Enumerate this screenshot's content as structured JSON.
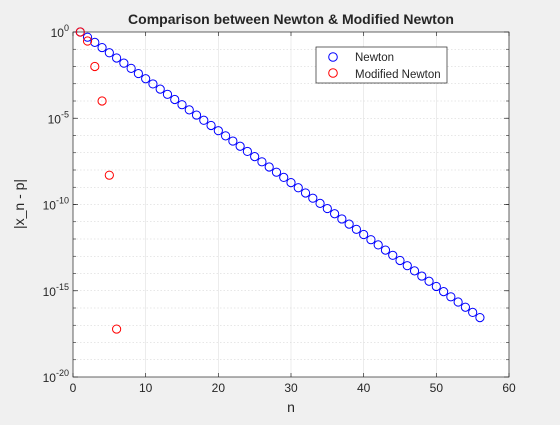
{
  "chart_data": {
    "type": "scatter",
    "title": "Comparison between Newton & Modified Newton",
    "xlabel": "n",
    "ylabel": "|x_n - p|",
    "xlim": [
      0,
      60
    ],
    "ylim": [
      1e-20,
      1
    ],
    "yscale": "log",
    "grid": true,
    "legend_position": "top-right",
    "x_ticks": [
      "0",
      "10",
      "20",
      "30",
      "40",
      "50",
      "60"
    ],
    "y_ticks": [
      {
        "base": "10",
        "exp": "0"
      },
      {
        "base": "10",
        "exp": "-5"
      },
      {
        "base": "10",
        "exp": "-10"
      },
      {
        "base": "10",
        "exp": "-15"
      },
      {
        "base": "10",
        "exp": "-20"
      }
    ],
    "series": [
      {
        "name": "Newton",
        "color": "#0000ff",
        "marker": "circle",
        "x": [
          1,
          2,
          3,
          4,
          5,
          6,
          7,
          8,
          9,
          10,
          11,
          12,
          13,
          14,
          15,
          16,
          17,
          18,
          19,
          20,
          21,
          22,
          23,
          24,
          25,
          26,
          27,
          28,
          29,
          30,
          31,
          32,
          33,
          34,
          35,
          36,
          37,
          38,
          39,
          40,
          41,
          42,
          43,
          44,
          45,
          46,
          47,
          48,
          49,
          50,
          51,
          52,
          53,
          54,
          55,
          56
        ],
        "y": [
          1.0,
          0.5,
          0.25,
          0.125,
          0.0625,
          0.03125,
          0.015625,
          0.0078125,
          0.00390625,
          0.001953125,
          0.0009765625,
          0.00048828125,
          0.000244140625,
          0.0001220703125,
          6.103515625e-05,
          3.0517578125e-05,
          1.52587890625e-05,
          7.62939453125e-06,
          3.814697265625e-06,
          1.9073486328125e-06,
          9.5367431640625e-07,
          4.76837158203125e-07,
          2.384185791015625e-07,
          1.1920928955078125e-07,
          5.960464477539063e-08,
          2.9802322387695312e-08,
          1.4901161193847656e-08,
          7.450580596923828e-09,
          3.725290298461914e-09,
          1.862645149230957e-09,
          9.313225746154785e-10,
          4.656612873077393e-10,
          2.3283064365386963e-10,
          1.1641532182693481e-10,
          5.820766091346741e-11,
          2.9103830456733704e-11,
          1.4551915228366852e-11,
          7.275957614183426e-12,
          3.637978807091713e-12,
          1.8189894035458565e-12,
          9.094947017729282e-13,
          4.547473508864641e-13,
          2.2737367544323206e-13,
          1.1368683772161603e-13,
          5.684341886080802e-14,
          2.842170943040401e-14,
          1.4210854715202004e-14,
          7.105427357601002e-15,
          3.552713678800501e-15,
          1.7763568394002505e-15,
          8.881784197001252e-16,
          4.440892098500626e-16,
          2.220446049250313e-16,
          1.1102230246251565e-16,
          5.551115123125783e-17,
          2.7755575615628914e-17
        ]
      },
      {
        "name": "Modified Newton",
        "color": "#ff0000",
        "marker": "circle",
        "x": [
          1,
          2,
          3,
          4,
          5,
          6
        ],
        "y": [
          1.0,
          0.3,
          0.01,
          0.0001,
          5e-09,
          6e-18
        ]
      }
    ]
  }
}
